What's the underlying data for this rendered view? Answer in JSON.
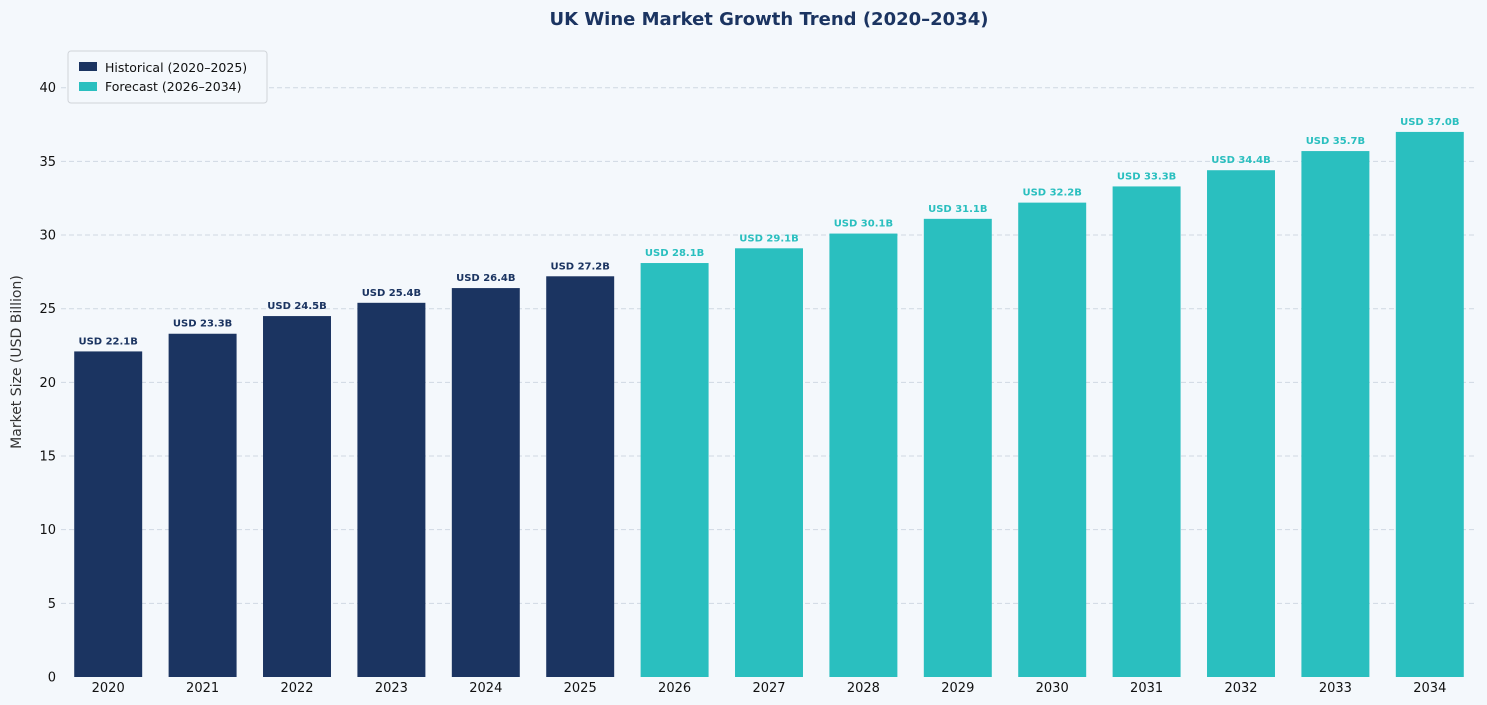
{
  "chart_data": {
    "type": "bar",
    "title": "UK Wine Market Growth Trend (2020–2034)",
    "xlabel": "",
    "ylabel": "Market Size (USD Billion)",
    "ylim": [
      0,
      42.9
    ],
    "yticks": [
      0,
      5,
      10,
      15,
      20,
      25,
      30,
      35,
      40
    ],
    "grid": true,
    "grid_axis": "y",
    "legend_position": "top-left",
    "categories": [
      "2020",
      "2021",
      "2022",
      "2023",
      "2024",
      "2025",
      "2026",
      "2027",
      "2028",
      "2029",
      "2030",
      "2031",
      "2032",
      "2033",
      "2034"
    ],
    "series": [
      {
        "name": "Historical (2020–2025)",
        "color": "#1b3461",
        "categories": [
          "2020",
          "2021",
          "2022",
          "2023",
          "2024",
          "2025"
        ],
        "values": [
          22.1,
          23.3,
          24.5,
          25.4,
          26.4,
          27.2
        ],
        "labels": [
          "USD 22.1B",
          "USD 23.3B",
          "USD 24.5B",
          "USD 25.4B",
          "USD 26.4B",
          "USD 27.2B"
        ]
      },
      {
        "name": "Forecast (2026–2034)",
        "color": "#2abfbf",
        "categories": [
          "2026",
          "2027",
          "2028",
          "2029",
          "2030",
          "2031",
          "2032",
          "2033",
          "2034"
        ],
        "values": [
          28.1,
          29.1,
          30.1,
          31.1,
          32.2,
          33.3,
          34.4,
          35.7,
          37.0
        ],
        "labels": [
          "USD 28.1B",
          "USD 29.1B",
          "USD 30.1B",
          "USD 31.1B",
          "USD 32.2B",
          "USD 33.3B",
          "USD 34.4B",
          "USD 35.7B",
          "USD 37.0B"
        ]
      }
    ]
  },
  "colors": {
    "background": "#f4f8fc",
    "title": "#1b3461",
    "historical": "#1b3461",
    "forecast": "#2abfbf",
    "grid": "#cfd8e2"
  }
}
